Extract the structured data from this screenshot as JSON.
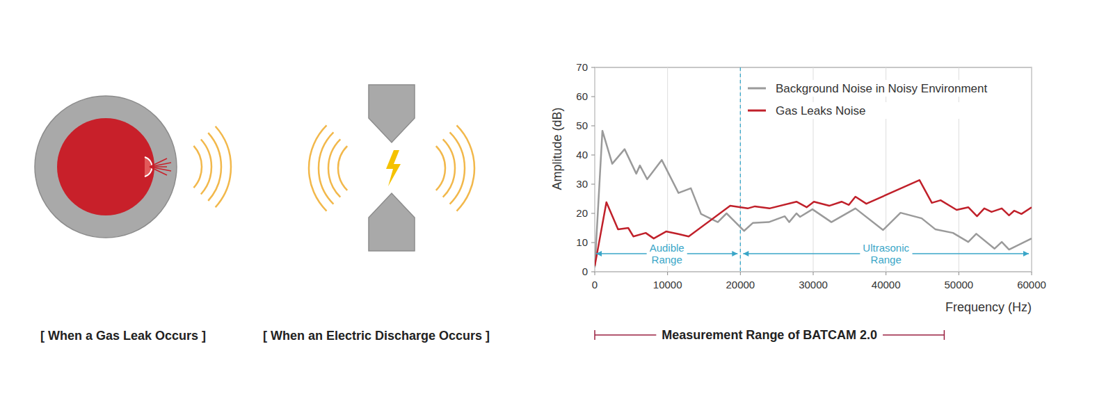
{
  "illustrations": [
    {
      "caption": "[ When a Gas Leak Occurs ]"
    },
    {
      "caption": "[ When an Electric Discharge Occurs ]"
    }
  ],
  "chart_data": {
    "type": "line",
    "x_label": "Frequency (Hz)",
    "y_label": "Amplitude (dB)",
    "xlim": [
      0,
      60000
    ],
    "xticks": [
      0,
      10000,
      20000,
      30000,
      40000,
      50000,
      60000
    ],
    "ylim": [
      0,
      70
    ],
    "yticks": [
      0,
      10,
      20,
      30,
      40,
      50,
      60,
      70
    ],
    "grid": "x",
    "legend": "top-right",
    "series": [
      {
        "name": "Background Noise in Noisy Environment",
        "color": "#9a9a9a",
        "x": [
          0,
          1050,
          2400,
          4100,
          5700,
          6200,
          7200,
          9200,
          11500,
          13200,
          14600,
          16900,
          18100,
          18900,
          20500,
          21700,
          23900,
          26100,
          26700,
          27700,
          28200,
          29900,
          32500,
          35800,
          39600,
          42000,
          44900,
          46800,
          49200,
          51300,
          52400,
          54900,
          55900,
          56900,
          60000
        ],
        "values": [
          1.5,
          48.3,
          37,
          42,
          33.6,
          36.4,
          31.7,
          38.3,
          27,
          28.6,
          19.8,
          17,
          20,
          18,
          14,
          16.7,
          17,
          19,
          17,
          20,
          18.8,
          21.4,
          17,
          21.7,
          14.3,
          20.2,
          18.3,
          14.5,
          13.3,
          10.2,
          13,
          7.9,
          10.2,
          7.6,
          11.4
        ]
      },
      {
        "name": "Gas Leaks Noise",
        "color": "#c0202a",
        "x": [
          0,
          1600,
          3200,
          4600,
          5300,
          7000,
          8100,
          9800,
          11500,
          12900,
          18600,
          21000,
          22000,
          24000,
          27700,
          29100,
          30100,
          32200,
          33900,
          34900,
          35800,
          37300,
          44600,
          46300,
          47500,
          49700,
          51300,
          52500,
          53500,
          54500,
          55900,
          56900,
          57600,
          58600,
          60000
        ],
        "values": [
          2,
          23.8,
          14.5,
          15,
          12.1,
          13.3,
          11.4,
          13.8,
          12.9,
          12.1,
          22.6,
          21.7,
          22.4,
          21.7,
          24,
          22.1,
          24,
          22.6,
          24,
          22.9,
          25.7,
          23.3,
          31.4,
          23.6,
          24.5,
          21.2,
          22.1,
          19,
          21.7,
          20.5,
          21.7,
          19.3,
          20.9,
          19.8,
          22.1
        ]
      }
    ],
    "ranges": [
      {
        "label": "Audible Range",
        "start": 0,
        "end": 20000
      },
      {
        "label": "Ultrasonic Range",
        "start": 20000,
        "end": 60000
      }
    ],
    "measurement_range": {
      "label": "Measurement Range of BATCAM 2.0",
      "start": 0,
      "end": 48000
    }
  }
}
